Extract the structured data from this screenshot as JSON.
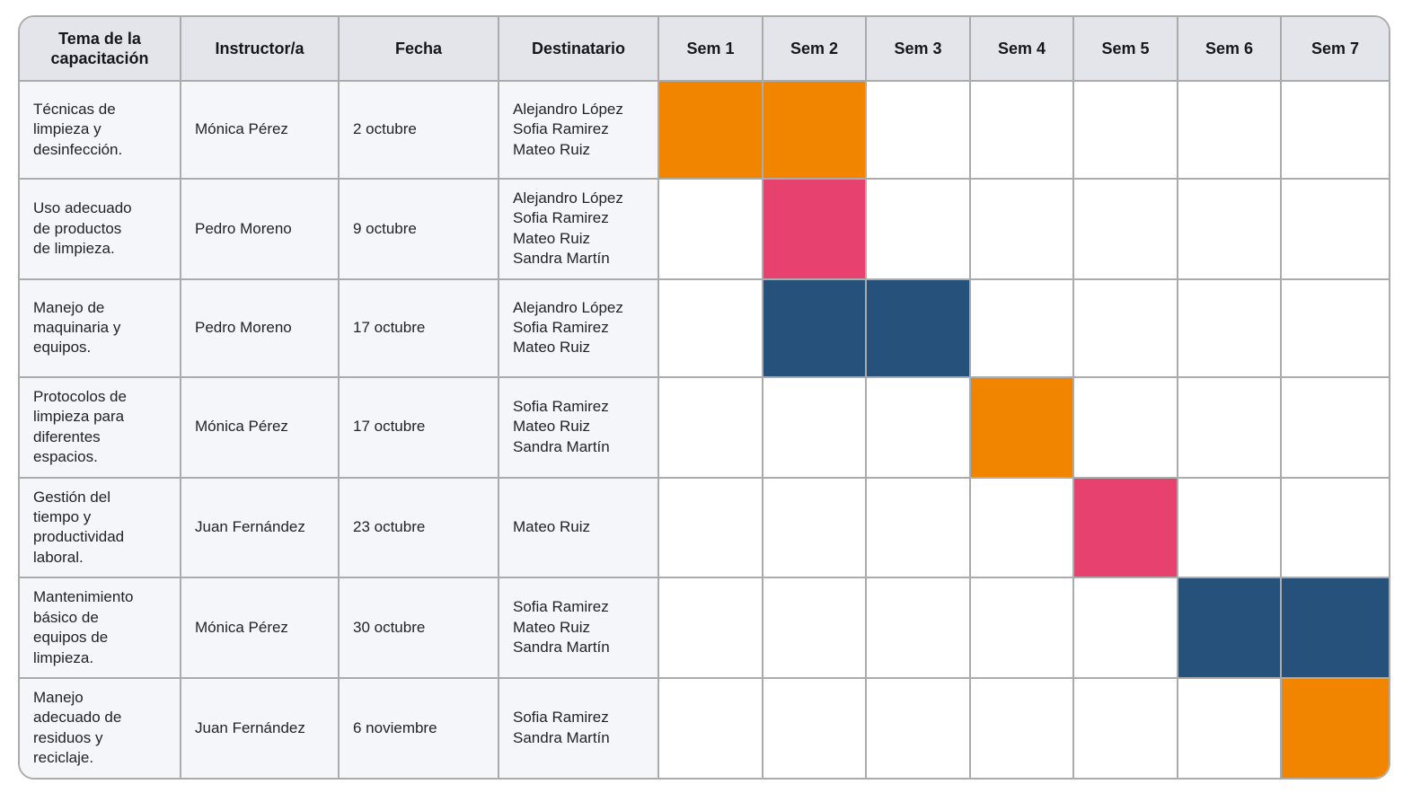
{
  "colors": {
    "orange": "#F28500",
    "pink": "#E6416F",
    "blue": "#25517A",
    "header_bg": "#E3E5EB",
    "info_bg": "#F5F6F9",
    "grid": "#ABABAB"
  },
  "table": {
    "columns": [
      {
        "key": "tema",
        "label": "Tema de la capacitación"
      },
      {
        "key": "instructor",
        "label": "Instructor/a"
      },
      {
        "key": "fecha",
        "label": "Fecha"
      },
      {
        "key": "destinatario",
        "label": "Destinatario"
      }
    ],
    "week_columns": [
      "Sem 1",
      "Sem 2",
      "Sem 3",
      "Sem 4",
      "Sem 5",
      "Sem 6",
      "Sem 7"
    ],
    "rows": [
      {
        "tema": "Técnicas de\nlimpieza y\ndesinfección.",
        "instructor": "Mónica Pérez",
        "fecha": "2 octubre",
        "destinatario": "Alejandro López\nSofia Ramirez\nMateo Ruiz",
        "weeks": [
          "orange",
          "orange",
          null,
          null,
          null,
          null,
          null
        ]
      },
      {
        "tema": "Uso adecuado\nde productos\nde limpieza.",
        "instructor": "Pedro Moreno",
        "fecha": "9 octubre",
        "destinatario": "Alejandro López\nSofia Ramirez\nMateo Ruiz\nSandra Martín",
        "weeks": [
          null,
          "pink",
          null,
          null,
          null,
          null,
          null
        ]
      },
      {
        "tema": "Manejo de\nmaquinaria y\nequipos.",
        "instructor": "Pedro Moreno",
        "fecha": "17 octubre",
        "destinatario": "Alejandro López\nSofia Ramirez\nMateo Ruiz",
        "weeks": [
          null,
          "blue",
          "blue",
          null,
          null,
          null,
          null
        ]
      },
      {
        "tema": "Protocolos de\nlimpieza para\ndiferentes\nespacios.",
        "instructor": "Mónica Pérez",
        "fecha": "17 octubre",
        "destinatario": "Sofia Ramirez\nMateo Ruiz\nSandra Martín",
        "weeks": [
          null,
          null,
          null,
          "orange",
          null,
          null,
          null
        ]
      },
      {
        "tema": "Gestión del\ntiempo y\nproductividad\nlaboral.",
        "instructor": "Juan Fernández",
        "fecha": "23 octubre",
        "destinatario": "Mateo Ruiz",
        "weeks": [
          null,
          null,
          null,
          null,
          "pink",
          null,
          null
        ]
      },
      {
        "tema": "Mantenimiento\nbásico de\nequipos de\nlimpieza.",
        "instructor": "Mónica Pérez",
        "fecha": "30 octubre",
        "destinatario": "Sofia Ramirez\nMateo Ruiz\nSandra Martín",
        "weeks": [
          null,
          null,
          null,
          null,
          null,
          "blue",
          "blue"
        ]
      },
      {
        "tema": "Manejo\nadecuado de\nresiduos y\nreciclaje.",
        "instructor": "Juan Fernández",
        "fecha": "6 noviembre",
        "destinatario": "Sofia Ramirez\nSandra Martín",
        "weeks": [
          null,
          null,
          null,
          null,
          null,
          null,
          "orange"
        ]
      }
    ]
  },
  "chart_data": {
    "type": "table",
    "subtype": "gantt-schedule",
    "columns": [
      "Tema de la capacitación",
      "Instructor/a",
      "Fecha",
      "Destinatario",
      "Sem 1",
      "Sem 2",
      "Sem 3",
      "Sem 4",
      "Sem 5",
      "Sem 6",
      "Sem 7"
    ],
    "x_categories": [
      "Sem 1",
      "Sem 2",
      "Sem 3",
      "Sem 4",
      "Sem 5",
      "Sem 6",
      "Sem 7"
    ],
    "rows": [
      {
        "tema": "Técnicas de limpieza y desinfección.",
        "instructor": "Mónica Pérez",
        "fecha": "2 octubre",
        "destinatarios": [
          "Alejandro López",
          "Sofia Ramirez",
          "Mateo Ruiz"
        ],
        "scheduled_weeks": [
          1,
          2
        ],
        "bar_color": "#F28500"
      },
      {
        "tema": "Uso adecuado de productos de limpieza.",
        "instructor": "Pedro Moreno",
        "fecha": "9 octubre",
        "destinatarios": [
          "Alejandro López",
          "Sofia Ramirez",
          "Mateo Ruiz",
          "Sandra Martín"
        ],
        "scheduled_weeks": [
          2
        ],
        "bar_color": "#E6416F"
      },
      {
        "tema": "Manejo de maquinaria y equipos.",
        "instructor": "Pedro Moreno",
        "fecha": "17 octubre",
        "destinatarios": [
          "Alejandro López",
          "Sofia Ramirez",
          "Mateo Ruiz"
        ],
        "scheduled_weeks": [
          2,
          3
        ],
        "bar_color": "#25517A"
      },
      {
        "tema": "Protocolos de limpieza para diferentes espacios.",
        "instructor": "Mónica Pérez",
        "fecha": "17 octubre",
        "destinatarios": [
          "Sofia Ramirez",
          "Mateo Ruiz",
          "Sandra Martín"
        ],
        "scheduled_weeks": [
          4
        ],
        "bar_color": "#F28500"
      },
      {
        "tema": "Gestión del tiempo y productividad laboral.",
        "instructor": "Juan Fernández",
        "fecha": "23 octubre",
        "destinatarios": [
          "Mateo Ruiz"
        ],
        "scheduled_weeks": [
          5
        ],
        "bar_color": "#E6416F"
      },
      {
        "tema": "Mantenimiento básico de equipos de limpieza.",
        "instructor": "Mónica Pérez",
        "fecha": "30 octubre",
        "destinatarios": [
          "Sofia Ramirez",
          "Mateo Ruiz",
          "Sandra Martín"
        ],
        "scheduled_weeks": [
          6,
          7
        ],
        "bar_color": "#25517A"
      },
      {
        "tema": "Manejo adecuado de residuos y reciclaje.",
        "instructor": "Juan Fernández",
        "fecha": "6 noviembre",
        "destinatarios": [
          "Sofia Ramirez",
          "Sandra Martín"
        ],
        "scheduled_weeks": [
          7
        ],
        "bar_color": "#F28500"
      }
    ],
    "layout": {
      "grid": true,
      "legend": false,
      "header_background": "#E3E5EB",
      "info_background": "#F5F6F9",
      "week_background": "#FFFFFF"
    }
  }
}
